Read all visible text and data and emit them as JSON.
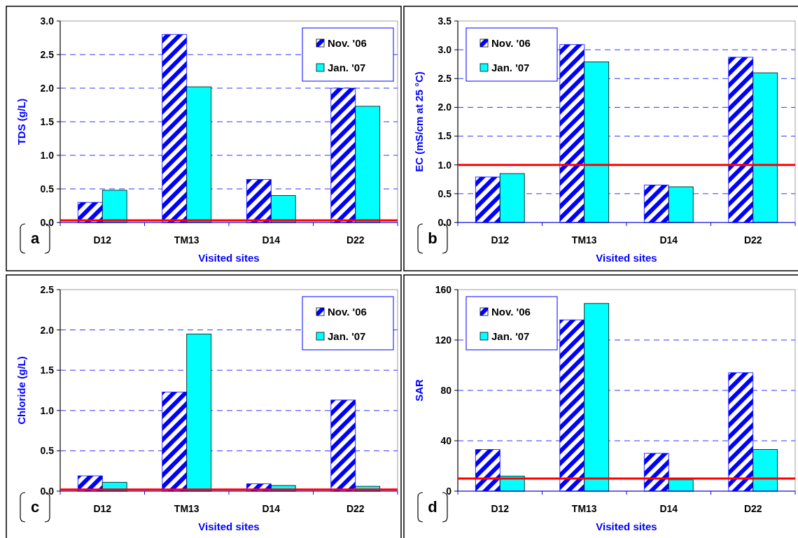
{
  "chart_data": [
    {
      "type": "bar",
      "ylabel": "TDS (g/L)",
      "xlabel": "Visited sites",
      "categories": [
        "D12",
        "TM13",
        "D14",
        "D22"
      ],
      "ylim": [
        0,
        3
      ],
      "yticks": [
        {
          "value": 0,
          "label": "0.0"
        },
        {
          "value": 0.5,
          "label": "0.5"
        },
        {
          "value": 1,
          "label": "1.0"
        },
        {
          "value": 1.5,
          "label": "1.5"
        },
        {
          "value": 2,
          "label": "2.0"
        },
        {
          "value": 2.5,
          "label": "2.5"
        },
        {
          "value": 3,
          "label": "3.0"
        }
      ],
      "grid": "y",
      "legend": "top right",
      "annotations": [
        "a"
      ],
      "series": [
        {
          "name": "Nov. '06",
          "color": "#0000ff",
          "values": [
            0.3,
            2.8,
            0.64,
            2.0
          ]
        },
        {
          "name": "Jan. '07",
          "color": "#00ffff",
          "values": [
            0.48,
            2.02,
            0.4,
            1.73
          ]
        }
      ],
      "ref_lines": [
        {
          "axis": "y",
          "value": 0.03,
          "color": "#ff0000"
        }
      ]
    },
    {
      "type": "bar",
      "ylabel": "EC (mS/cm at 25 °C)",
      "xlabel": "Visited sites",
      "categories": [
        "D12",
        "TM13",
        "D14",
        "D22"
      ],
      "ylim": [
        0,
        3.5
      ],
      "yticks": [
        {
          "value": 0,
          "label": "0.0"
        },
        {
          "value": 0.5,
          "label": "0.5"
        },
        {
          "value": 1,
          "label": "1.0"
        },
        {
          "value": 1.5,
          "label": "1.5"
        },
        {
          "value": 2,
          "label": "2.0"
        },
        {
          "value": 2.5,
          "label": "2.5"
        },
        {
          "value": 3,
          "label": "3.0"
        },
        {
          "value": 3.5,
          "label": "3.5"
        }
      ],
      "grid": "y",
      "legend": "top left",
      "annotations": [
        "b"
      ],
      "series": [
        {
          "name": "Nov. '06",
          "color": "#0000ff",
          "values": [
            0.79,
            3.09,
            0.65,
            2.87
          ]
        },
        {
          "name": "Jan. '07",
          "color": "#00ffff",
          "values": [
            0.85,
            2.79,
            0.62,
            2.6
          ]
        }
      ],
      "ref_lines": [
        {
          "axis": "y",
          "value": 1,
          "color": "#ff0000"
        }
      ]
    },
    {
      "type": "bar",
      "ylabel": "Chloride (g/L)",
      "xlabel": "Visited sites",
      "categories": [
        "D12",
        "TM13",
        "D14",
        "D22"
      ],
      "ylim": [
        0,
        2.5
      ],
      "yticks": [
        {
          "value": 0,
          "label": "0.0"
        },
        {
          "value": 0.5,
          "label": "0.5"
        },
        {
          "value": 1,
          "label": "1.0"
        },
        {
          "value": 1.5,
          "label": "1.5"
        },
        {
          "value": 2,
          "label": "2.0"
        },
        {
          "value": 2.5,
          "label": "2.5"
        }
      ],
      "grid": "y",
      "legend": "top right",
      "annotations": [
        "c"
      ],
      "series": [
        {
          "name": "Nov. '06",
          "color": "#0000ff",
          "values": [
            0.19,
            1.23,
            0.09,
            1.13
          ]
        },
        {
          "name": "Jan. '07",
          "color": "#00ffff",
          "values": [
            0.11,
            1.95,
            0.07,
            0.06
          ]
        }
      ],
      "ref_lines": [
        {
          "axis": "y",
          "value": 0.02,
          "color": "#ff0000"
        }
      ]
    },
    {
      "type": "bar",
      "ylabel": "SAR",
      "xlabel": "Visited sites",
      "categories": [
        "D12",
        "TM13",
        "D14",
        "D22"
      ],
      "ylim": [
        0,
        160
      ],
      "yticks": [
        0,
        40,
        80,
        120,
        160
      ],
      "grid": "y",
      "legend": "top left",
      "annotations": [
        "d"
      ],
      "series": [
        {
          "name": "Nov. '06",
          "color": "#0000ff",
          "values": [
            33,
            136,
            30,
            94
          ]
        },
        {
          "name": "Jan. '07",
          "color": "#00ffff",
          "values": [
            12,
            149,
            9,
            33
          ]
        }
      ],
      "ref_lines": [
        {
          "axis": "y",
          "value": 10,
          "color": "#ff0000"
        }
      ]
    }
  ]
}
